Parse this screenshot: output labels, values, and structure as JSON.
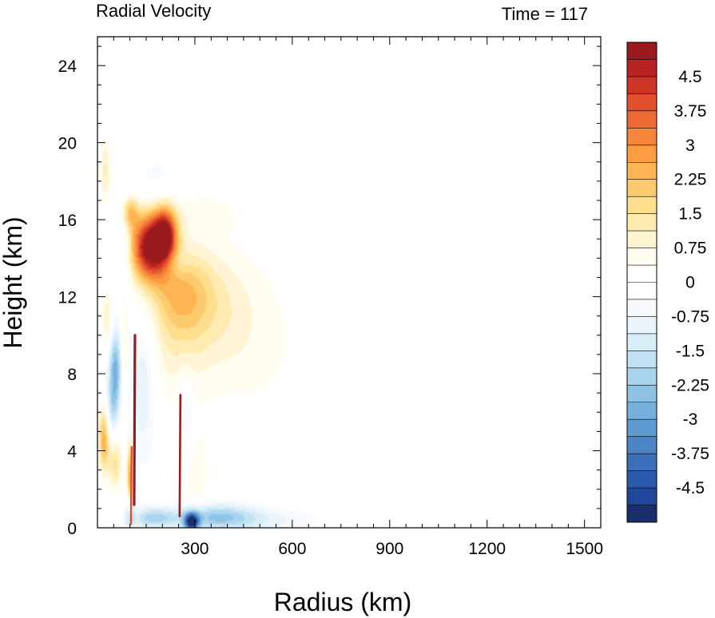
{
  "chart_data": {
    "type": "heatmap",
    "title_left": "Radial Velocity",
    "title_right": "Time = 117",
    "xlabel": "Radius (km)",
    "ylabel": "Height (km)",
    "xlim": [
      0,
      1550
    ],
    "ylim": [
      0,
      25.5
    ],
    "x_ticks": [
      300,
      600,
      900,
      1200,
      1500
    ],
    "y_ticks": [
      0,
      4,
      8,
      12,
      16,
      20,
      24
    ],
    "x_tick_labels": [
      "300",
      "600",
      "900",
      "1200",
      "1500"
    ],
    "y_tick_labels": [
      "0",
      "4",
      "8",
      "12",
      "16",
      "20",
      "24"
    ],
    "colorbar": {
      "min": -5.25,
      "max": 5.25,
      "step": 0.25,
      "tick_values": [
        4.5,
        3.75,
        3,
        2.25,
        1.5,
        0.75,
        0,
        -0.75,
        -1.5,
        -2.25,
        -3,
        -3.75,
        -4.5
      ],
      "tick_labels": [
        "4.5",
        "3.75",
        "3",
        "2.25",
        "1.5",
        "0.75",
        "0",
        "-0.75",
        "-1.5",
        "-2.25",
        "-3",
        "-3.75",
        "-4.5"
      ],
      "palette": [
        "#1a2f6b",
        "#22469a",
        "#2c5aad",
        "#3b6fba",
        "#4b85c4",
        "#5e9bd0",
        "#76b1dc",
        "#8fc3e6",
        "#a8d4ee",
        "#c1e2f4",
        "#d8eef9",
        "#eaf5fb",
        "#f7fbfe",
        "#ffffff",
        "#ffffff",
        "#fffdf0",
        "#fff5d4",
        "#ffeab0",
        "#fedd8c",
        "#fdcb6e",
        "#fdb553",
        "#fc9d42",
        "#f7853b",
        "#ee6a34",
        "#e14f2d",
        "#cf3527",
        "#b82322",
        "#9a1b1e"
      ]
    },
    "features": [
      {
        "x": 160,
        "y": 14.6,
        "value": 5.2,
        "sx": 40,
        "sy": 1.2
      },
      {
        "x": 210,
        "y": 15.2,
        "value": 4.0,
        "sx": 25,
        "sy": 1.0
      },
      {
        "x": 250,
        "y": 12.3,
        "value": 1.5,
        "sx": 70,
        "sy": 1.6
      },
      {
        "x": 330,
        "y": 11.6,
        "value": 0.9,
        "sx": 110,
        "sy": 2.2
      },
      {
        "x": 300,
        "y": 16.4,
        "value": 0.5,
        "sx": 110,
        "sy": 0.8
      },
      {
        "x": 460,
        "y": 9.5,
        "value": 0.45,
        "sx": 150,
        "sy": 3.0
      },
      {
        "x": 240,
        "y": 8.8,
        "value": 0.55,
        "sx": 60,
        "sy": 2.2
      },
      {
        "x": 230,
        "y": 13.8,
        "value": -0.7,
        "sx": 30,
        "sy": 0.5
      },
      {
        "x": 100,
        "y": 16.4,
        "value": 2.1,
        "sx": 18,
        "sy": 0.6
      },
      {
        "x": 25,
        "y": 18.6,
        "value": 1.2,
        "sx": 12,
        "sy": 1.2
      },
      {
        "x": 30,
        "y": 10.8,
        "value": 1.1,
        "sx": 12,
        "sy": 1.0
      },
      {
        "x": 20,
        "y": 4.6,
        "value": 2.5,
        "sx": 12,
        "sy": 1.2
      },
      {
        "x": 55,
        "y": 3.4,
        "value": 1.6,
        "sx": 15,
        "sy": 1.0
      },
      {
        "x": 55,
        "y": 8.3,
        "value": -2.6,
        "sx": 14,
        "sy": 1.5
      },
      {
        "x": 45,
        "y": 6.2,
        "value": -1.3,
        "sx": 14,
        "sy": 1.2
      },
      {
        "x": 85,
        "y": 14.5,
        "value": -0.8,
        "sx": 14,
        "sy": 2.0
      },
      {
        "x": 140,
        "y": 7.5,
        "value": -1.2,
        "sx": 30,
        "sy": 2.8
      },
      {
        "x": 180,
        "y": 18.0,
        "value": -0.5,
        "sx": 60,
        "sy": 1.2
      },
      {
        "x": 100,
        "y": 2.2,
        "value": 3.2,
        "sx": 6,
        "sy": 1.6
      },
      {
        "x": 100,
        "y": 0.7,
        "value": -2.6,
        "sx": 8,
        "sy": 0.9
      },
      {
        "x": 170,
        "y": 0.5,
        "value": -1.8,
        "sx": 50,
        "sy": 0.4
      },
      {
        "x": 290,
        "y": 0.3,
        "value": -4.6,
        "sx": 16,
        "sy": 0.35
      },
      {
        "x": 360,
        "y": 0.6,
        "value": -1.8,
        "sx": 90,
        "sy": 0.5
      },
      {
        "x": 470,
        "y": 0.4,
        "value": -0.9,
        "sx": 150,
        "sy": 0.45
      },
      {
        "x": 300,
        "y": 2.8,
        "value": 0.7,
        "sx": 30,
        "sy": 1.6
      },
      {
        "x": 270,
        "y": 5.5,
        "value": -0.8,
        "sx": 20,
        "sy": 2.0
      },
      {
        "x": 85,
        "y": 9.5,
        "value": 0.9,
        "sx": 8,
        "sy": 2.5
      }
    ],
    "lines": [
      {
        "x": 113,
        "y0": 1.2,
        "y1": 10.0,
        "value": 5.0,
        "width": 3.2
      },
      {
        "x": 253,
        "y0": 0.6,
        "y1": 6.9,
        "value": 5.0,
        "width": 2.6
      },
      {
        "x": 103,
        "y0": 0.2,
        "y1": 4.2,
        "value": 4.0,
        "width": 2.4
      }
    ]
  }
}
